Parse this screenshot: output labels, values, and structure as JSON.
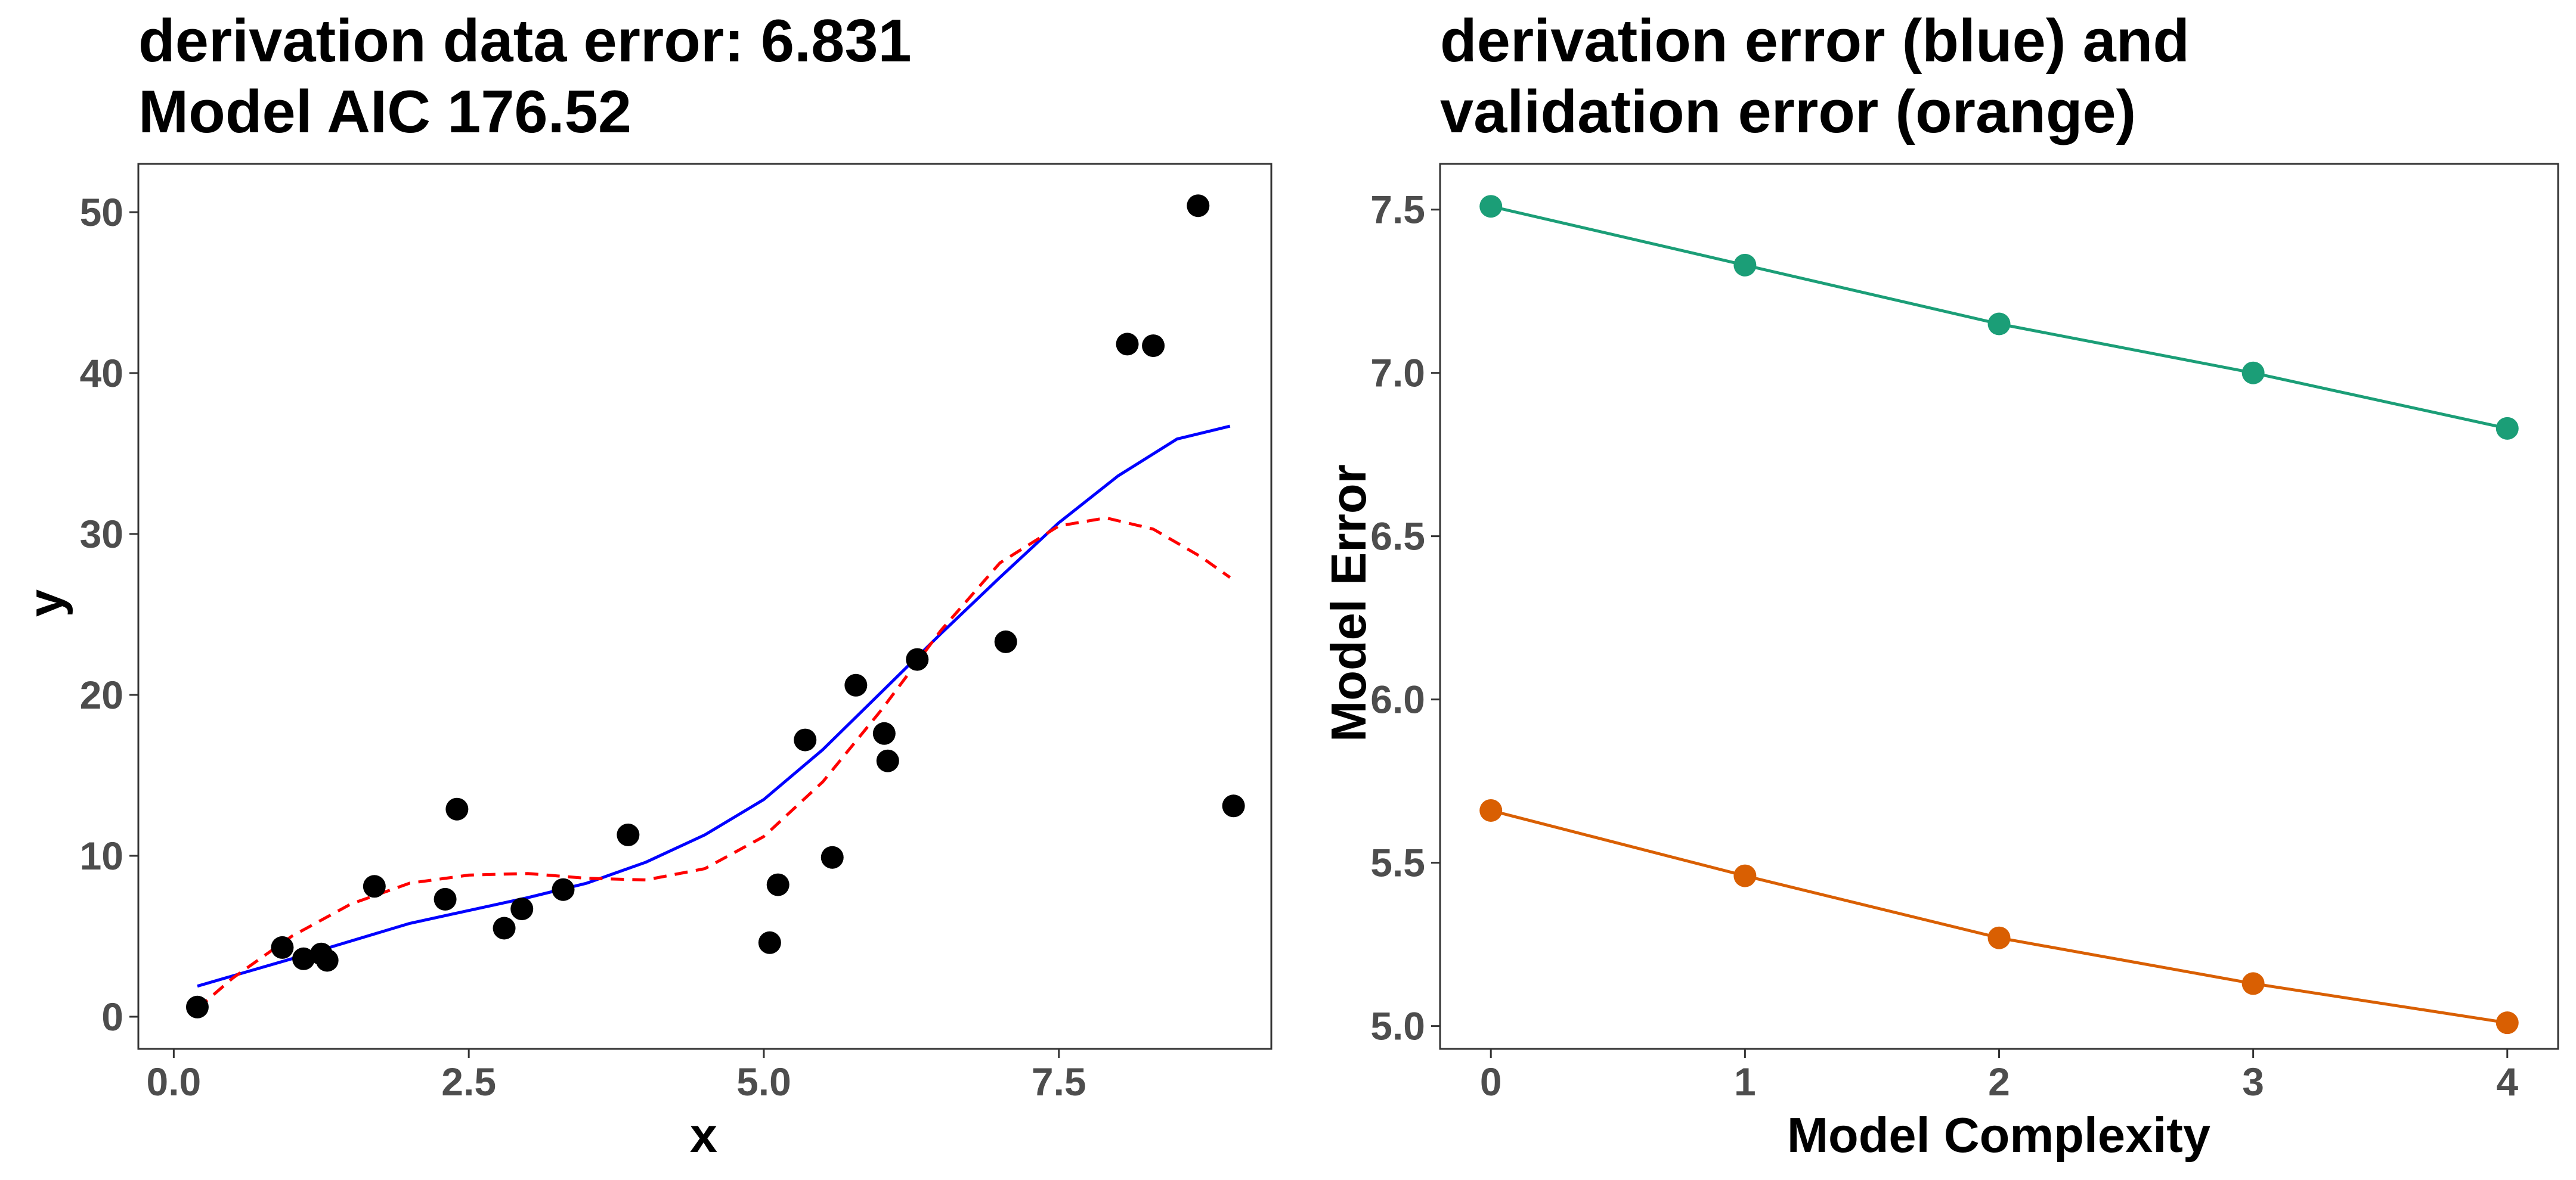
{
  "chart_data": [
    {
      "type": "scatter",
      "title_lines": [
        "derivation data error: 6.831",
        "Model AIC 176.52"
      ],
      "xlabel": "x",
      "ylabel": "y",
      "xlim": [
        -0.3,
        9.3
      ],
      "ylim": [
        -2,
        53
      ],
      "x_ticks": [
        0,
        2.5,
        5,
        7.5
      ],
      "x_tick_labels": [
        "0.0",
        "2.5",
        "5.0",
        "7.5"
      ],
      "y_ticks": [
        0,
        10,
        20,
        30,
        40,
        50
      ],
      "y_tick_labels": [
        "0",
        "10",
        "20",
        "30",
        "40",
        "50"
      ],
      "grid": false,
      "points": [
        {
          "x": 0.2,
          "y": 0.6
        },
        {
          "x": 0.92,
          "y": 4.3
        },
        {
          "x": 1.1,
          "y": 3.6
        },
        {
          "x": 1.25,
          "y": 3.9
        },
        {
          "x": 1.3,
          "y": 3.5
        },
        {
          "x": 1.7,
          "y": 8.1
        },
        {
          "x": 2.3,
          "y": 7.3
        },
        {
          "x": 2.4,
          "y": 12.9
        },
        {
          "x": 2.8,
          "y": 5.5
        },
        {
          "x": 2.95,
          "y": 6.7
        },
        {
          "x": 3.3,
          "y": 7.9
        },
        {
          "x": 3.85,
          "y": 11.3
        },
        {
          "x": 5.05,
          "y": 4.6
        },
        {
          "x": 5.12,
          "y": 8.2
        },
        {
          "x": 5.35,
          "y": 17.2
        },
        {
          "x": 5.58,
          "y": 9.9
        },
        {
          "x": 5.78,
          "y": 20.6
        },
        {
          "x": 6.02,
          "y": 17.6
        },
        {
          "x": 6.05,
          "y": 15.9
        },
        {
          "x": 6.3,
          "y": 22.2
        },
        {
          "x": 7.05,
          "y": 23.3
        },
        {
          "x": 8.08,
          "y": 41.8
        },
        {
          "x": 8.3,
          "y": 41.7
        },
        {
          "x": 8.68,
          "y": 50.4
        },
        {
          "x": 8.98,
          "y": 13.1
        }
      ],
      "point_color": "#000000",
      "lines": [
        {
          "color": "#0000ff",
          "dash": "solid",
          "points": [
            [
              0.2,
              1.9
            ],
            [
              1.0,
              3.6
            ],
            [
              2.0,
              5.8
            ],
            [
              3.0,
              7.4
            ],
            [
              3.5,
              8.3
            ],
            [
              4.0,
              9.6
            ],
            [
              4.5,
              11.3
            ],
            [
              5.0,
              13.5
            ],
            [
              5.5,
              16.6
            ],
            [
              6.0,
              20.2
            ],
            [
              6.5,
              23.8
            ],
            [
              7.0,
              27.3
            ],
            [
              7.5,
              30.7
            ],
            [
              8.0,
              33.6
            ],
            [
              8.5,
              35.9
            ],
            [
              8.95,
              36.7
            ]
          ]
        },
        {
          "color": "#ff0000",
          "dash": "dashed",
          "points": [
            [
              0.2,
              0.5
            ],
            [
              0.5,
              2.4
            ],
            [
              1.0,
              5.0
            ],
            [
              1.5,
              7.0
            ],
            [
              2.0,
              8.3
            ],
            [
              2.5,
              8.8
            ],
            [
              3.0,
              8.9
            ],
            [
              3.5,
              8.6
            ],
            [
              4.0,
              8.5
            ],
            [
              4.5,
              9.2
            ],
            [
              5.0,
              11.2
            ],
            [
              5.5,
              14.6
            ],
            [
              6.0,
              19.1
            ],
            [
              6.5,
              24.0
            ],
            [
              7.0,
              28.2
            ],
            [
              7.5,
              30.5
            ],
            [
              7.9,
              31.0
            ],
            [
              8.3,
              30.3
            ],
            [
              8.7,
              28.6
            ],
            [
              8.95,
              27.3
            ]
          ]
        }
      ]
    },
    {
      "type": "line",
      "title_lines": [
        "derivation error (blue) and",
        "validation error (orange)"
      ],
      "xlabel": "Model Complexity",
      "ylabel": "Model Error",
      "xlim": [
        -0.2,
        4.2
      ],
      "ylim": [
        4.93,
        7.64
      ],
      "x_ticks": [
        0,
        1,
        2,
        3,
        4
      ],
      "x_tick_labels": [
        "0",
        "1",
        "2",
        "3",
        "4"
      ],
      "y_ticks": [
        5.0,
        5.5,
        6.0,
        6.5,
        7.0,
        7.5
      ],
      "y_tick_labels": [
        "5.0",
        "5.5",
        "6.0",
        "6.5",
        "7.0",
        "7.5"
      ],
      "grid": false,
      "x": [
        0,
        1,
        2,
        3,
        4
      ],
      "series": [
        {
          "values": [
            7.51,
            7.33,
            7.15,
            7.0,
            6.83
          ],
          "color": "#1b9e77"
        },
        {
          "values": [
            5.66,
            5.46,
            5.27,
            5.13,
            5.01
          ],
          "color": "#d95f02"
        }
      ]
    }
  ]
}
